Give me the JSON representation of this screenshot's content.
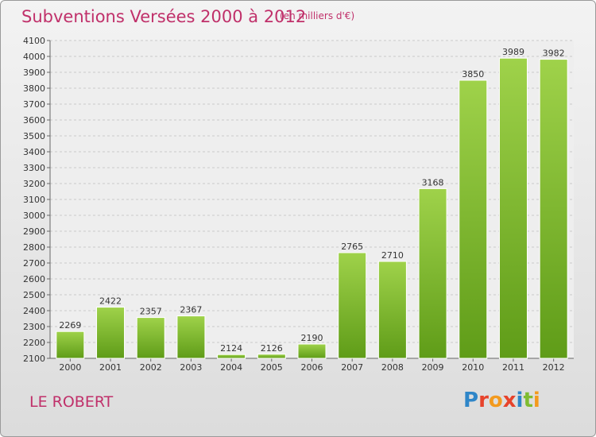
{
  "chart_data": {
    "type": "bar",
    "title": "Subventions Versées 2000 à 2012",
    "subtitle": "(en milliers d'€)",
    "categories": [
      "2000",
      "2001",
      "2002",
      "2003",
      "2004",
      "2005",
      "2006",
      "2007",
      "2008",
      "2009",
      "2010",
      "2011",
      "2012"
    ],
    "values": [
      2269,
      2422,
      2357,
      2367,
      2124,
      2126,
      2190,
      2765,
      2710,
      3168,
      3850,
      3989,
      3982
    ],
    "ylim": [
      2100,
      4100
    ],
    "yticks": [
      2100,
      2200,
      2300,
      2400,
      2500,
      2600,
      2700,
      2800,
      2900,
      3000,
      3100,
      3200,
      3300,
      3400,
      3500,
      3600,
      3700,
      3800,
      3900,
      4000,
      4100
    ],
    "grid": true,
    "bar_color": "#7fbf2e"
  },
  "location": "LE ROBERT",
  "brand": {
    "letters": [
      "P",
      "r",
      "o",
      "x",
      "i",
      "t",
      "i"
    ]
  }
}
